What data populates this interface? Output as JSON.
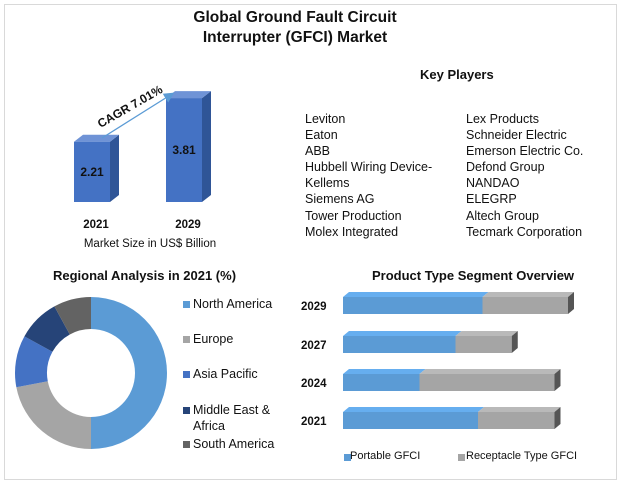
{
  "title_line1": "Global Ground Fault Circuit",
  "title_line2": "Interrupter (GFCI) Market",
  "key_players": {
    "heading": "Key Players",
    "col1": [
      "Leviton",
      "Eaton",
      "ABB",
      "Hubbell Wiring Device-",
      "Kellems",
      "Siemens AG",
      "Tower Production",
      "Molex Integrated"
    ],
    "col2": [
      "Lex Products",
      "Schneider Electric",
      "Emerson Electric Co.",
      "Defond Group",
      "NANDAO",
      "ELEGRP",
      "Altech Group",
      "Tecmark Corporation"
    ]
  },
  "colors": {
    "blue": "#4472c4",
    "light_blue": "#5b9bd5",
    "gray": "#a5a5a5",
    "dark_blue": "#264478",
    "dark_gray": "#636363"
  },
  "chart_data": [
    {
      "type": "bar",
      "categories": [
        "2021",
        "2029"
      ],
      "values": [
        2.21,
        3.81
      ],
      "xlabel": "Market Size in US$ Billion",
      "annotation": "CAGR 7.01%"
    },
    {
      "type": "pie",
      "title": "Regional Analysis in 2021 (%)",
      "labels": [
        "North America",
        "Europe",
        "Asia Pacific",
        "Middle East & Africa",
        "South America"
      ],
      "values": [
        50,
        22,
        11,
        9,
        8
      ]
    },
    {
      "type": "bar",
      "orientation": "horizontal",
      "stacked": true,
      "title": "Product Type Segment Overview",
      "categories": [
        "2029",
        "2027",
        "2024",
        "2021"
      ],
      "series": [
        {
          "name": "Portable GFCI",
          "values": [
            62,
            50,
            34,
            60
          ]
        },
        {
          "name": "Receptacle Type GFCI",
          "values": [
            38,
            25,
            60,
            34
          ]
        }
      ],
      "xlim": [
        0,
        100
      ]
    }
  ]
}
